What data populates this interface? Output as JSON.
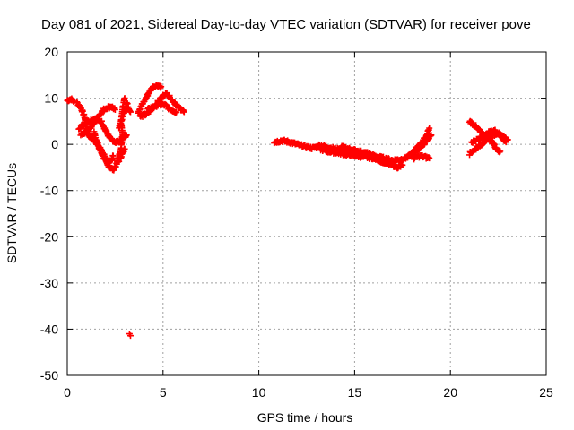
{
  "chart_data": {
    "type": "scatter",
    "title": "Day 081 of 2021, Sidereal Day-to-day VTEC variation (SDTVAR) for receiver pove",
    "xlabel": "GPS time / hours",
    "ylabel": "SDTVAR / TECUs",
    "xlim": [
      0,
      25
    ],
    "ylim": [
      -50,
      20
    ],
    "xticks": [
      "0",
      "5",
      "10",
      "15",
      "20",
      "25"
    ],
    "yticks": [
      "20",
      "10",
      "0",
      "-10",
      "-20",
      "-30",
      "-40",
      "-50"
    ],
    "xtick_values": [
      0,
      5,
      10,
      15,
      20,
      25
    ],
    "ytick_values": [
      20,
      10,
      0,
      -10,
      -20,
      -30,
      -40,
      -50
    ],
    "grid": true,
    "marker": "+",
    "color": "#ff0000",
    "series": [
      {
        "name": "SDTVAR",
        "tracks": [
          [
            [
              0.0,
              9.5
            ],
            [
              0.2,
              9.8
            ],
            [
              0.35,
              9.3
            ]
          ],
          [
            [
              0.5,
              9.0
            ],
            [
              0.7,
              8.0
            ],
            [
              0.9,
              6.0
            ],
            [
              1.0,
              3.0
            ],
            [
              1.2,
              1.5
            ],
            [
              1.5,
              0.5
            ],
            [
              1.8,
              -2.0
            ],
            [
              2.1,
              -4.5
            ],
            [
              2.4,
              -5.5
            ],
            [
              2.7,
              -3.5
            ],
            [
              3.0,
              -1.0
            ]
          ],
          [
            [
              0.6,
              3.5
            ],
            [
              0.9,
              4.5
            ],
            [
              1.2,
              5.2
            ],
            [
              1.5,
              5.5
            ],
            [
              1.8,
              4.8
            ],
            [
              2.0,
              3.0
            ],
            [
              2.2,
              1.5
            ],
            [
              2.5,
              0.2
            ],
            [
              2.8,
              1.0
            ],
            [
              3.1,
              2.0
            ]
          ],
          [
            [
              0.7,
              2.0
            ],
            [
              1.0,
              2.8
            ],
            [
              1.3,
              4.0
            ],
            [
              1.6,
              6.0
            ],
            [
              1.9,
              7.5
            ],
            [
              2.1,
              8.0
            ],
            [
              2.3,
              8.2
            ],
            [
              2.5,
              7.5
            ]
          ],
          [
            [
              1.4,
              2.5
            ],
            [
              1.6,
              0.0
            ],
            [
              1.8,
              -1.5
            ],
            [
              2.0,
              -3.0
            ],
            [
              2.2,
              -4.0
            ],
            [
              2.4,
              -2.5
            ]
          ],
          [
            [
              2.6,
              -4.0
            ],
            [
              2.8,
              -1.0
            ],
            [
              2.9,
              2.0
            ],
            [
              2.8,
              5.0
            ],
            [
              2.9,
              8.0
            ],
            [
              3.0,
              10.0
            ]
          ],
          [
            [
              2.7,
              3.5
            ],
            [
              2.9,
              6.0
            ],
            [
              3.1,
              9.0
            ],
            [
              3.3,
              7.0
            ]
          ],
          [
            [
              3.25,
              -41.0
            ]
          ],
          [
            [
              3.7,
              7.0
            ],
            [
              3.9,
              8.5
            ],
            [
              4.1,
              10.0
            ],
            [
              4.3,
              11.5
            ],
            [
              4.5,
              12.5
            ],
            [
              4.7,
              12.8
            ],
            [
              4.9,
              12.5
            ]
          ],
          [
            [
              3.8,
              6.0
            ],
            [
              4.1,
              6.5
            ],
            [
              4.4,
              7.5
            ],
            [
              4.7,
              9.0
            ],
            [
              5.0,
              10.5
            ],
            [
              5.2,
              11.0
            ],
            [
              5.4,
              10.0
            ],
            [
              5.6,
              9.0
            ],
            [
              5.8,
              8.0
            ],
            [
              6.0,
              7.5
            ],
            [
              6.1,
              7.0
            ]
          ],
          [
            [
              4.2,
              7.5
            ],
            [
              4.5,
              8.2
            ],
            [
              4.8,
              8.6
            ],
            [
              5.1,
              8.5
            ],
            [
              5.4,
              7.5
            ],
            [
              5.7,
              7.0
            ]
          ],
          [
            [
              10.8,
              0.5
            ],
            [
              11.2,
              0.8
            ],
            [
              11.6,
              0.5
            ],
            [
              12.0,
              0.0
            ],
            [
              12.4,
              -0.5
            ],
            [
              12.8,
              -0.8
            ],
            [
              13.1,
              -0.5
            ]
          ],
          [
            [
              13.1,
              -0.2
            ],
            [
              13.5,
              -0.5
            ],
            [
              14.0,
              -1.0
            ],
            [
              14.5,
              -1.5
            ],
            [
              15.0,
              -1.5
            ],
            [
              15.5,
              -2.0
            ],
            [
              16.0,
              -2.5
            ],
            [
              16.5,
              -3.0
            ],
            [
              17.0,
              -3.5
            ],
            [
              17.5,
              -3.2
            ],
            [
              17.9,
              -2.5
            ]
          ],
          [
            [
              13.2,
              -1.0
            ],
            [
              13.6,
              -1.5
            ],
            [
              14.1,
              -1.8
            ],
            [
              14.6,
              -2.2
            ],
            [
              15.1,
              -2.5
            ],
            [
              15.6,
              -2.8
            ],
            [
              16.1,
              -3.0
            ],
            [
              16.6,
              -4.0
            ],
            [
              17.0,
              -4.5
            ],
            [
              17.3,
              -5.0
            ],
            [
              17.5,
              -4.5
            ]
          ],
          [
            [
              14.3,
              -0.5
            ],
            [
              14.7,
              -1.0
            ],
            [
              15.2,
              -1.5
            ],
            [
              15.7,
              -2.0
            ],
            [
              16.2,
              -3.5
            ],
            [
              16.7,
              -4.0
            ]
          ],
          [
            [
              17.9,
              -2.5
            ],
            [
              18.1,
              -1.5
            ],
            [
              18.3,
              -0.5
            ],
            [
              18.5,
              0.5
            ],
            [
              18.7,
              1.5
            ],
            [
              18.8,
              2.5
            ],
            [
              18.9,
              3.5
            ]
          ],
          [
            [
              17.7,
              -3.0
            ],
            [
              18.0,
              -2.0
            ],
            [
              18.3,
              -1.0
            ],
            [
              18.6,
              0.0
            ],
            [
              18.8,
              1.0
            ],
            [
              19.0,
              2.0
            ]
          ],
          [
            [
              18.1,
              -3.0
            ],
            [
              18.4,
              -2.5
            ],
            [
              18.7,
              -2.8
            ],
            [
              18.9,
              -3.0
            ]
          ],
          [
            [
              21.0,
              5.0
            ],
            [
              21.3,
              4.0
            ],
            [
              21.6,
              2.5
            ],
            [
              21.9,
              1.5
            ],
            [
              22.2,
              0.5
            ],
            [
              22.4,
              -1.0
            ],
            [
              22.6,
              -1.5
            ]
          ],
          [
            [
              21.0,
              -2.0
            ],
            [
              21.3,
              -1.0
            ],
            [
              21.6,
              0.0
            ],
            [
              21.9,
              1.0
            ],
            [
              22.2,
              2.0
            ],
            [
              22.5,
              2.5
            ],
            [
              22.8,
              1.5
            ],
            [
              23.0,
              1.0
            ]
          ],
          [
            [
              21.1,
              0.5
            ],
            [
              21.4,
              1.0
            ],
            [
              21.7,
              1.5
            ],
            [
              22.0,
              2.5
            ],
            [
              22.3,
              3.0
            ],
            [
              22.6,
              2.0
            ],
            [
              22.9,
              0.5
            ]
          ]
        ]
      }
    ]
  }
}
